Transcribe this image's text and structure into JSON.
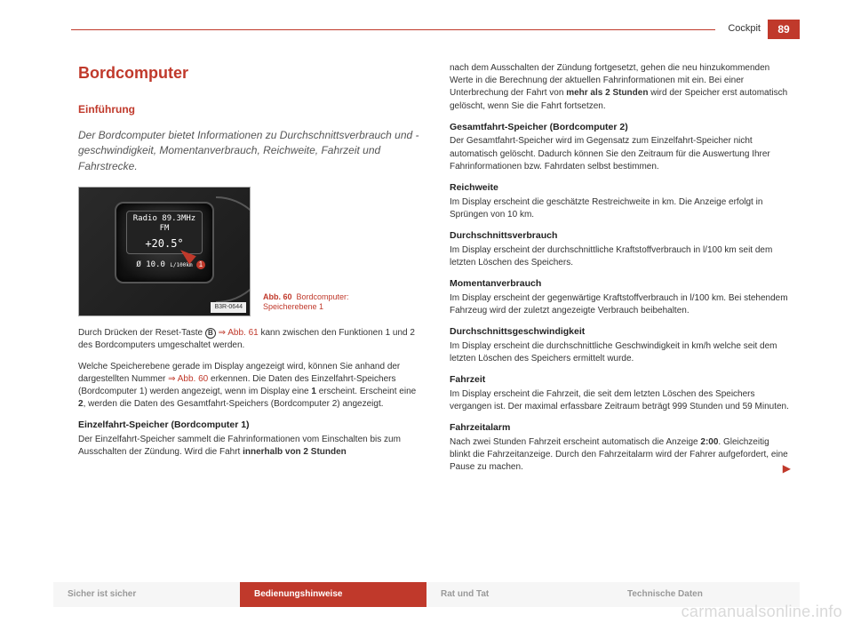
{
  "header": {
    "section": "Cockpit",
    "page": "89"
  },
  "colors": {
    "accent": "#c0392b",
    "text": "#333333",
    "watermark": "#d9d9d9"
  },
  "left": {
    "title": "Bordcomputer",
    "subtitle": "Einführung",
    "intro": "Der Bordcomputer bietet Informationen zu Durchschnittsver­brauch und -geschwindigkeit, Momentanverbrauch, Reich­weite, Fahrzeit und Fahrstrecke.",
    "figure": {
      "radio_line": "Radio 89.3MHz",
      "band": "FM",
      "temp": "+20.5°",
      "consumption": "Ø 10.0",
      "unit": "L/100km",
      "marker": "1",
      "tag": "B3R-0644",
      "caption_label": "Abb. 60",
      "caption_text": "Bordcomputer: Speicherebene 1"
    },
    "para1_a": "Durch Drücken der Reset-Taste ",
    "para1_btn": "B",
    "para1_b": " ⇒ Abb. 61",
    "para1_c": " kann zwischen den Funktionen 1 und 2 des Bordcomputers umgeschaltet werden.",
    "para2_a": "Welche Speicherebene gerade im Display angezeigt wird, können Sie an­hand der dargestellten Nummer ",
    "para2_b": "⇒ Abb. 60",
    "para2_c": " erkennen. Die Daten des Einzel­fahrt-Speichers (Bordcomputer 1) werden angezeigt, wenn im Display eine ",
    "para2_d": "1",
    "para2_e": " erscheint. Erscheint eine ",
    "para2_f": "2",
    "para2_g": ", werden die Daten des Gesamtfahrt-Speichers (Bordcomputer 2) angezeigt.",
    "sec1_head": "Einzelfahrt-Speicher (Bordcomputer 1)",
    "sec1_body_a": "Der Einzelfahrt-Speicher sammelt die Fahrinformationen vom Einschalten bis zum Ausschalten der Zündung. Wird die Fahrt ",
    "sec1_body_b": "innerhalb von 2 Stunden"
  },
  "right": {
    "cont": "nach dem Ausschalten der Zündung fortgesetzt, gehen die neu hinzukomm­enden Werte in die Berechnung der aktuellen Fahrinformationen mit ein. Bei einer Unterbrechung der Fahrt von ",
    "cont_b": "mehr als 2 Stunden",
    "cont_c": " wird der Speicher erst automatisch gelöscht, wenn Sie die Fahrt fortsetzen.",
    "s2_head": "Gesamtfahrt-Speicher (Bordcomputer 2)",
    "s2_body": "Der Gesamtfahrt-Speicher wird im Gegensatz zum Einzelfahrt-Speicher nicht automatisch gelöscht. Dadurch können Sie den Zeitraum für die Auswertung Ihrer Fahrinformationen bzw. Fahrdaten selbst bestimmen.",
    "s3_head": "Reichweite",
    "s3_body": "Im Display erscheint die geschätzte Restreichweite in km. Die Anzeige er­folgt in Sprüngen von 10 km.",
    "s4_head": "Durchschnittsverbrauch",
    "s4_body": "Im Display erscheint der durchschnittliche Kraftstoffverbrauch in l/100 km seit dem letzten Löschen des Speichers.",
    "s5_head": "Momentanverbrauch",
    "s5_body": "Im Display erscheint der gegenwärtige Kraftstoffverbrauch in l/100 km. Bei stehendem Fahrzeug wird der zuletzt angezeigte Verbrauch beibehalten.",
    "s6_head": "Durchschnittsgeschwindigkeit",
    "s6_body": "Im Display erscheint die durchschnittliche Geschwindigkeit in km/h welche seit dem letzten Löschen des Speichers ermittelt wurde.",
    "s7_head": "Fahrzeit",
    "s7_body": "Im Display erscheint die Fahrzeit, die seit dem letzten Löschen des Spei­chers vergangen ist. Der maximal erfassbare Zeitraum beträgt 999 Stunden und 59 Minuten.",
    "s8_head": "Fahrzeitalarm",
    "s8_body_a": "Nach zwei Stunden Fahrzeit erscheint automatisch die Anzeige ",
    "s8_body_b": "2:00",
    "s8_body_c": ". Gleich­zeitig blinkt die Fahrzeitanzeige. Durch den Fahrzeitalarm wird der Fahrer aufgefordert, eine Pause zu machen.",
    "cont_arrow": "▶"
  },
  "footer": {
    "t1": "Sicher ist sicher",
    "t2": "Bedienungshinweise",
    "t3": "Rat und Tat",
    "t4": "Technische Daten"
  },
  "watermark": "carmanualsonline.info"
}
